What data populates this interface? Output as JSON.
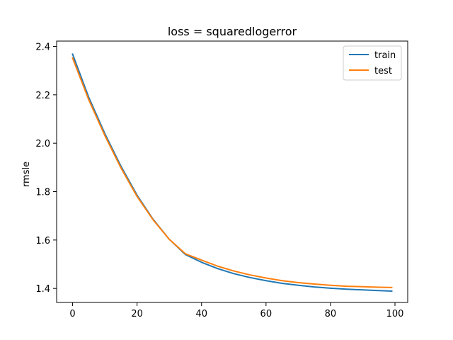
{
  "chart_data": {
    "type": "line",
    "title": "loss = squaredlogerror",
    "xlabel": "",
    "ylabel": "rmsle",
    "xlim": [
      -4.95,
      103.95
    ],
    "ylim": [
      1.342,
      2.422
    ],
    "xticks": [
      0,
      20,
      40,
      60,
      80,
      100
    ],
    "yticks": [
      1.4,
      1.6,
      1.8,
      2.0,
      2.2,
      2.4
    ],
    "ytick_labels": [
      "1.4",
      "1.6",
      "1.8",
      "2.0",
      "2.2",
      "2.4"
    ],
    "grid": false,
    "legend_position": "top-right",
    "series": [
      {
        "name": "train",
        "color": "#1f77b4",
        "x": [
          0,
          5,
          10,
          15,
          20,
          25,
          30,
          35,
          40,
          45,
          50,
          55,
          60,
          65,
          70,
          75,
          80,
          85,
          90,
          95,
          99
        ],
        "y": [
          2.368,
          2.19,
          2.04,
          1.905,
          1.785,
          1.685,
          1.603,
          1.54,
          1.508,
          1.482,
          1.461,
          1.445,
          1.432,
          1.421,
          1.413,
          1.406,
          1.401,
          1.397,
          1.394,
          1.391,
          1.389
        ]
      },
      {
        "name": "test",
        "color": "#ff7f0e",
        "x": [
          0,
          5,
          10,
          15,
          20,
          25,
          30,
          35,
          40,
          45,
          50,
          55,
          60,
          65,
          70,
          75,
          80,
          85,
          90,
          95,
          99
        ],
        "y": [
          2.352,
          2.18,
          2.032,
          1.898,
          1.78,
          1.683,
          1.603,
          1.543,
          1.517,
          1.492,
          1.472,
          1.456,
          1.443,
          1.432,
          1.424,
          1.418,
          1.413,
          1.409,
          1.407,
          1.405,
          1.404
        ]
      }
    ]
  }
}
